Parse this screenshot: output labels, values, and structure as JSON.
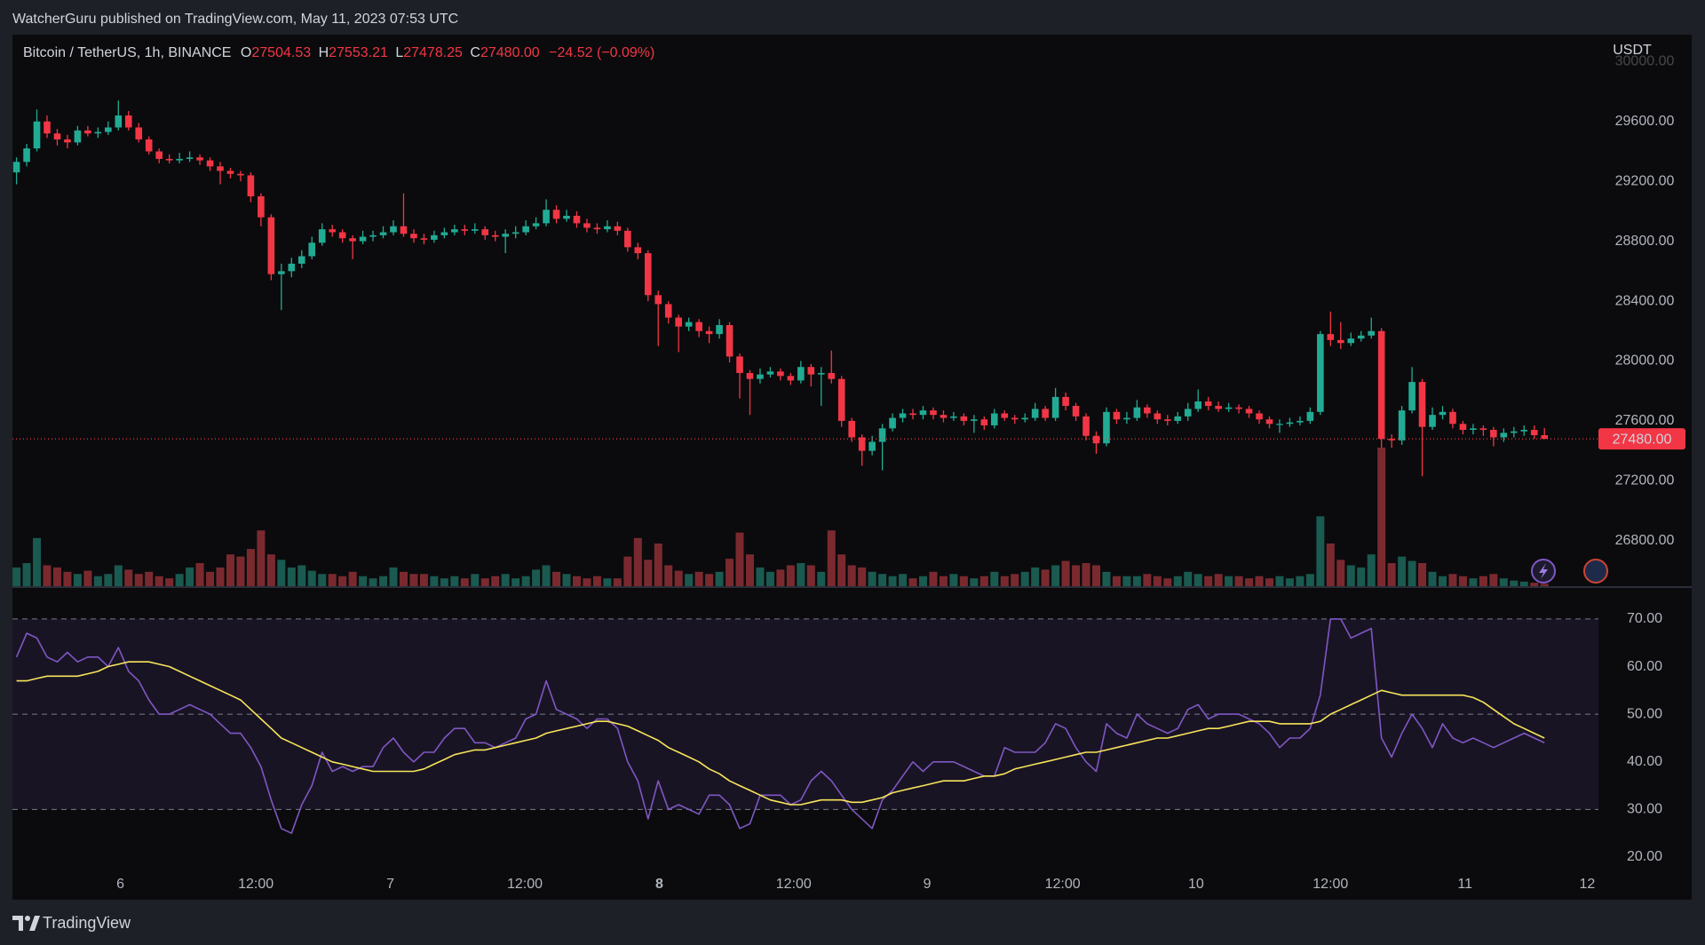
{
  "header": {
    "publisher": "WatcherGuru published on TradingView.com, May 11, 2023 07:53 UTC"
  },
  "footer": {
    "brand": "TradingView"
  },
  "chart_data": [
    {
      "type": "candlestick",
      "legend": {
        "symbol": "Bitcoin / TetherUS, 1h, BINANCE",
        "open_label": "O",
        "open": "27504.53",
        "high_label": "H",
        "high": "27553.21",
        "low_label": "L",
        "low": "27478.25",
        "close_label": "C",
        "close": "27480.00",
        "change": "−24.52 (−0.09%)"
      },
      "unit": "USDT",
      "price_label": "27480.00",
      "up_color": "#22ab94",
      "down_color": "#f23645",
      "volume_up_color": "#1a5a50",
      "volume_down_color": "#7a2a2f",
      "xlim": [
        -0.4,
        155.3
      ],
      "ylim": [
        26490,
        30180
      ],
      "yticks": [
        {
          "value": 26800,
          "label": "26800.00"
        },
        {
          "value": 27200,
          "label": "27200.00"
        },
        {
          "value": 27600,
          "label": "27600.00"
        },
        {
          "value": 28000,
          "label": "28000.00"
        },
        {
          "value": 28400,
          "label": "28400.00"
        },
        {
          "value": 28800,
          "label": "28800.00"
        },
        {
          "value": 29200,
          "label": "29200.00"
        },
        {
          "value": 29600,
          "label": "29600.00"
        },
        {
          "value": 30000,
          "label": "30000.00"
        }
      ],
      "open": [
        29260,
        29330,
        29420,
        29600,
        29520,
        29480,
        29460,
        29540,
        29520,
        29530,
        29560,
        29640,
        29560,
        29480,
        29400,
        29350,
        29340,
        29350,
        29360,
        29340,
        29300,
        29270,
        29250,
        29240,
        29100,
        28960,
        28580,
        28600,
        28650,
        28700,
        28790,
        28880,
        28860,
        28820,
        28800,
        28830,
        28840,
        28860,
        28900,
        28850,
        28820,
        28810,
        28840,
        28860,
        28880,
        28870,
        28880,
        28840,
        28830,
        28850,
        28860,
        28900,
        28920,
        29010,
        28950,
        28970,
        28920,
        28890,
        28880,
        28900,
        28870,
        28760,
        28720,
        28440,
        28380,
        28290,
        28230,
        28260,
        28200,
        28180,
        28240,
        28030,
        27920,
        27880,
        27910,
        27930,
        27900,
        27870,
        27960,
        27910,
        27920,
        27880,
        27600,
        27490,
        27400,
        27460,
        27550,
        27620,
        27650,
        27640,
        27670,
        27640,
        27620,
        27630,
        27600,
        27610,
        27570,
        27650,
        27620,
        27610,
        27620,
        27680,
        27620,
        27760,
        27700,
        27630,
        27500,
        27450,
        27660,
        27610,
        27620,
        27690,
        27650,
        27610,
        27600,
        27630,
        27680,
        27730,
        27700,
        27680,
        27690,
        27680,
        27650,
        27610,
        27580,
        27580,
        27590,
        27600,
        27660,
        28180,
        28140,
        28120,
        28150,
        28170,
        28200,
        27480,
        27470,
        27670,
        27860,
        27560,
        27640,
        27660,
        27580,
        27540,
        27550,
        27540,
        27490,
        27520,
        27530,
        27540,
        27504.53
      ],
      "high": [
        29360,
        29450,
        29680,
        29640,
        29550,
        29510,
        29570,
        29570,
        29560,
        29600,
        29740,
        29670,
        29590,
        29500,
        29420,
        29380,
        29390,
        29400,
        29380,
        29360,
        29330,
        29290,
        29270,
        29260,
        29120,
        28980,
        28650,
        28690,
        28740,
        28830,
        28920,
        28910,
        28880,
        28840,
        28870,
        28870,
        28900,
        28940,
        29120,
        28880,
        28850,
        28870,
        28890,
        28910,
        28910,
        28920,
        28900,
        28870,
        28880,
        28900,
        28940,
        28960,
        29080,
        29040,
        29010,
        29000,
        28950,
        28920,
        28940,
        28930,
        28890,
        28790,
        28740,
        28470,
        28400,
        28310,
        28290,
        28280,
        28230,
        28280,
        28260,
        28050,
        27940,
        27950,
        27960,
        27950,
        27920,
        28000,
        27980,
        27960,
        28070,
        27900,
        27620,
        27510,
        27500,
        27580,
        27650,
        27680,
        27680,
        27700,
        27690,
        27670,
        27660,
        27650,
        27640,
        27630,
        27680,
        27670,
        27640,
        27650,
        27720,
        27700,
        27820,
        27790,
        27720,
        27650,
        27530,
        27690,
        27680,
        27660,
        27740,
        27710,
        27670,
        27640,
        27660,
        27720,
        27810,
        27760,
        27730,
        27720,
        27710,
        27700,
        27670,
        27630,
        27610,
        27620,
        27630,
        27690,
        28200,
        28330,
        28260,
        28190,
        28200,
        28290,
        28220,
        27510,
        27700,
        27960,
        27880,
        27690,
        27700,
        27680,
        27600,
        27580,
        27570,
        27560,
        27550,
        27560,
        27570,
        27570,
        27553.21
      ],
      "low": [
        29180,
        29300,
        29400,
        29490,
        29440,
        29420,
        29440,
        29500,
        29490,
        29510,
        29540,
        29540,
        29460,
        29380,
        29320,
        29320,
        29320,
        29330,
        29310,
        29270,
        29180,
        29220,
        29200,
        29060,
        28900,
        28540,
        28340,
        28560,
        28620,
        28680,
        28770,
        28830,
        28790,
        28680,
        28780,
        28800,
        28820,
        28840,
        28830,
        28790,
        28780,
        28790,
        28820,
        28840,
        28840,
        28850,
        28810,
        28800,
        28720,
        28820,
        28840,
        28880,
        28900,
        28920,
        28930,
        28890,
        28860,
        28850,
        28860,
        28840,
        28730,
        28680,
        28400,
        28100,
        28250,
        28060,
        28200,
        28160,
        28120,
        28150,
        27990,
        27750,
        27640,
        27850,
        27890,
        27870,
        27840,
        27850,
        27830,
        27700,
        27850,
        27560,
        27460,
        27300,
        27370,
        27270,
        27530,
        27590,
        27610,
        27610,
        27610,
        27590,
        27600,
        27570,
        27520,
        27540,
        27550,
        27600,
        27580,
        27590,
        27600,
        27600,
        27600,
        27670,
        27600,
        27470,
        27380,
        27430,
        27580,
        27580,
        27600,
        27620,
        27580,
        27570,
        27580,
        27600,
        27660,
        27670,
        27660,
        27660,
        27650,
        27620,
        27580,
        27550,
        27520,
        27560,
        27570,
        27580,
        27640,
        28100,
        28080,
        28100,
        28130,
        28150,
        27420,
        27420,
        27440,
        27650,
        27230,
        27540,
        27610,
        27550,
        27510,
        27510,
        27500,
        27430,
        27460,
        27490,
        27500,
        27480,
        27478.25
      ],
      "close": [
        29330,
        29420,
        29600,
        29520,
        29480,
        29460,
        29540,
        29520,
        29530,
        29560,
        29640,
        29560,
        29480,
        29400,
        29350,
        29340,
        29350,
        29360,
        29340,
        29300,
        29270,
        29250,
        29240,
        29100,
        28960,
        28580,
        28600,
        28650,
        28700,
        28790,
        28880,
        28860,
        28820,
        28800,
        28830,
        28840,
        28860,
        28900,
        28850,
        28820,
        28810,
        28840,
        28860,
        28880,
        28870,
        28880,
        28840,
        28830,
        28850,
        28860,
        28900,
        28920,
        29010,
        28950,
        28970,
        28920,
        28890,
        28880,
        28900,
        28870,
        28760,
        28720,
        28440,
        28380,
        28290,
        28230,
        28260,
        28200,
        28180,
        28240,
        28030,
        27920,
        27880,
        27910,
        27930,
        27900,
        27870,
        27960,
        27910,
        27920,
        27880,
        27600,
        27490,
        27400,
        27460,
        27550,
        27620,
        27650,
        27640,
        27670,
        27640,
        27620,
        27630,
        27600,
        27610,
        27570,
        27650,
        27620,
        27610,
        27620,
        27680,
        27620,
        27760,
        27700,
        27630,
        27500,
        27450,
        27660,
        27610,
        27620,
        27690,
        27650,
        27610,
        27600,
        27630,
        27680,
        27730,
        27700,
        27680,
        27690,
        27680,
        27650,
        27610,
        27580,
        27580,
        27590,
        27600,
        27660,
        28180,
        28140,
        28120,
        28150,
        28170,
        28200,
        27480,
        27470,
        27670,
        27860,
        27560,
        27640,
        27660,
        27580,
        27540,
        27550,
        27540,
        27490,
        27520,
        27530,
        27540,
        27504.53,
        27480
      ],
      "volume": [
        18,
        22,
        45,
        20,
        18,
        14,
        12,
        15,
        10,
        12,
        20,
        16,
        12,
        14,
        10,
        8,
        12,
        18,
        22,
        14,
        18,
        30,
        28,
        35,
        52,
        30,
        25,
        18,
        20,
        15,
        12,
        12,
        10,
        14,
        10,
        8,
        10,
        18,
        14,
        12,
        12,
        10,
        8,
        10,
        8,
        12,
        8,
        10,
        12,
        8,
        10,
        16,
        20,
        14,
        12,
        10,
        8,
        10,
        8,
        8,
        28,
        45,
        25,
        40,
        20,
        15,
        12,
        14,
        12,
        14,
        26,
        50,
        30,
        18,
        14,
        16,
        20,
        22,
        20,
        14,
        52,
        30,
        20,
        18,
        14,
        12,
        10,
        12,
        8,
        10,
        14,
        10,
        12,
        10,
        8,
        10,
        14,
        10,
        12,
        14,
        18,
        16,
        20,
        24,
        20,
        22,
        20,
        14,
        10,
        10,
        10,
        12,
        10,
        8,
        10,
        14,
        12,
        10,
        12,
        10,
        10,
        8,
        10,
        8,
        10,
        8,
        10,
        12,
        65,
        40,
        25,
        20,
        18,
        30,
        128,
        22,
        28,
        24,
        22,
        14,
        10,
        12,
        10,
        8,
        10,
        12,
        8,
        6,
        5,
        4,
        3
      ]
    },
    {
      "type": "line",
      "xlim": [
        -0.4,
        155.3
      ],
      "ylim": [
        17.2,
        76.7
      ],
      "yticks": [
        {
          "value": 20,
          "label": "20.00"
        },
        {
          "value": 30,
          "label": "30.00"
        },
        {
          "value": 40,
          "label": "40.00"
        },
        {
          "value": 50,
          "label": "50.00"
        },
        {
          "value": 60,
          "label": "60.00"
        },
        {
          "value": 70,
          "label": "70.00"
        }
      ],
      "xticks": [
        {
          "value": 10.2,
          "label": "6"
        },
        {
          "value": 23.5,
          "label": "12:00"
        },
        {
          "value": 36.7,
          "label": "7"
        },
        {
          "value": 49.9,
          "label": "12:00"
        },
        {
          "value": 63.1,
          "label": "8",
          "bold": true
        },
        {
          "value": 76.3,
          "label": "12:00"
        },
        {
          "value": 89.4,
          "label": "9"
        },
        {
          "value": 102.7,
          "label": "12:00"
        },
        {
          "value": 115.8,
          "label": "10"
        },
        {
          "value": 129.0,
          "label": "12:00"
        },
        {
          "value": 142.2,
          "label": "11"
        },
        {
          "value": 154.2,
          "label": "12"
        }
      ],
      "bands": [
        30,
        50,
        70
      ],
      "band_color": "#7e57c2",
      "series": [
        {
          "color": "#7e57c2",
          "values": [
            62,
            67,
            66,
            62,
            61,
            63,
            61,
            62,
            62,
            60,
            64,
            59,
            57,
            53,
            50,
            50,
            51,
            52,
            51,
            50,
            48,
            46,
            46,
            43,
            39,
            32,
            26,
            25,
            31,
            35,
            42,
            38,
            39,
            38,
            39,
            39,
            43,
            45,
            42,
            40,
            42,
            42,
            45,
            47,
            47,
            44,
            44,
            43,
            44,
            45,
            49,
            50,
            57,
            51,
            50,
            49,
            47,
            49,
            49,
            47,
            40,
            36,
            28,
            36,
            30,
            31,
            30,
            29,
            33,
            33,
            31,
            26,
            27,
            33,
            33,
            33,
            31,
            32,
            36,
            38,
            36,
            33,
            30,
            28,
            26,
            32,
            34,
            37,
            40,
            38,
            40,
            40,
            40,
            39,
            38,
            37,
            37,
            43,
            42,
            42,
            42,
            44,
            48,
            47,
            43,
            40,
            38,
            48,
            46,
            45,
            50,
            48,
            47,
            46,
            47,
            51,
            52,
            49,
            50,
            50,
            50,
            49,
            48,
            46,
            43,
            45,
            45,
            47,
            54,
            70,
            70,
            66,
            67,
            68,
            45,
            41,
            46,
            50,
            47,
            43,
            48,
            45,
            44,
            45,
            44,
            43,
            44,
            45,
            46,
            45,
            44
          ]
        },
        {
          "color": "#f7e55a",
          "values": [
            57,
            57,
            57.5,
            58,
            58,
            58,
            58,
            58.5,
            59,
            60,
            60.5,
            61,
            61,
            61,
            60.5,
            60,
            59,
            58,
            57,
            56,
            55,
            54,
            53,
            51,
            49,
            47,
            45,
            44,
            43,
            42,
            41,
            40,
            39.5,
            39,
            38.5,
            38,
            38,
            38,
            38,
            38,
            38.5,
            39.5,
            40.5,
            41.5,
            42,
            42.5,
            42.5,
            43,
            43.5,
            44,
            44.5,
            45,
            46,
            46.5,
            47,
            47.5,
            48,
            48.5,
            48.5,
            48,
            47.5,
            46.5,
            45.5,
            44.5,
            43,
            42,
            41,
            40,
            38.5,
            37.5,
            36,
            35,
            34,
            33,
            32,
            31.5,
            31,
            31,
            31.5,
            32,
            32,
            32,
            31.5,
            31.5,
            32,
            32.5,
            33.5,
            34,
            34.5,
            35,
            35.5,
            36,
            36,
            36,
            36.5,
            37,
            37,
            37.5,
            38.5,
            39,
            39.5,
            40,
            40.5,
            41,
            41.5,
            42,
            42,
            42.5,
            43,
            43.5,
            44,
            44.5,
            45,
            45,
            45.5,
            46,
            46.5,
            47,
            47,
            47.5,
            48,
            48.5,
            48.5,
            48.5,
            48,
            48,
            48,
            48,
            48.5,
            50,
            51,
            52,
            53,
            54,
            55,
            54.5,
            54,
            54,
            54,
            54,
            54,
            54,
            54,
            53.5,
            52.5,
            51,
            49.5,
            48,
            47,
            46,
            45
          ]
        }
      ]
    }
  ]
}
